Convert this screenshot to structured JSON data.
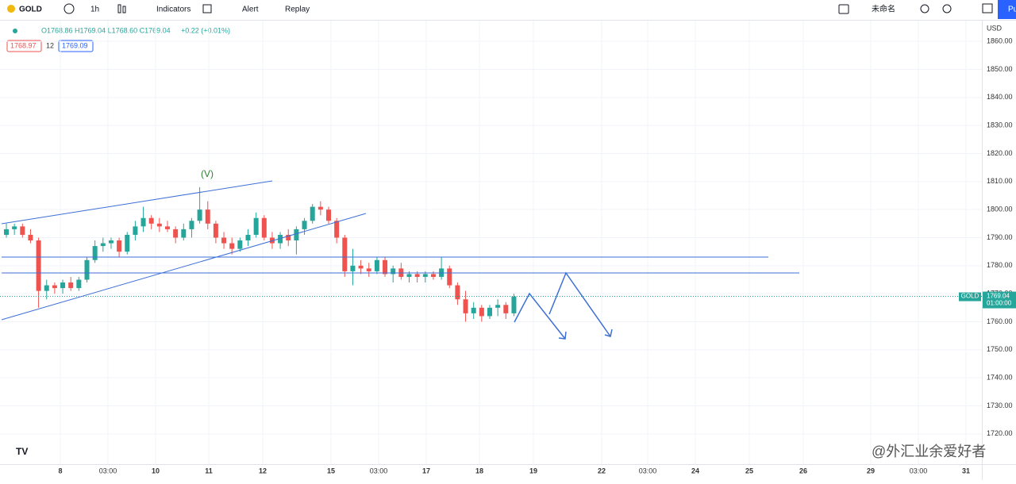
{
  "toolbar": {
    "symbol": "GOLD",
    "interval": "1h",
    "indicators": "Indicators",
    "alert": "Alert",
    "replay": "Replay",
    "layout_name": "未命名",
    "publish": "Pu"
  },
  "legend": {
    "ohlc": "O1768.86 H1769.04 L1768.60 C1769.04",
    "change": "+0.22 (+0.01%)",
    "bid": "1768.97",
    "spread": "12",
    "ask": "1769.09"
  },
  "chart": {
    "type": "candlestick",
    "currency": "USD",
    "wave_label": "(V)",
    "watermark": "@外汇业余爱好者",
    "last_price": {
      "value": 1769.04,
      "label": "1769.04"
    },
    "price_tag": "GOLD",
    "countdown": "01:00:00",
    "ylim": [
      1709.2,
      1867.4
    ],
    "yticks": [
      {
        "value": 1860,
        "label": "1860.00"
      },
      {
        "value": 1850,
        "label": "1850.00"
      },
      {
        "value": 1840,
        "label": "1840.00"
      },
      {
        "value": 1830,
        "label": "1830.00"
      },
      {
        "value": 1820,
        "label": "1820.00"
      },
      {
        "value": 1810,
        "label": "1810.00"
      },
      {
        "value": 1800,
        "label": "1800.00"
      },
      {
        "value": 1790,
        "label": "1790.00"
      },
      {
        "value": 1780,
        "label": "1780.00"
      },
      {
        "value": 1770,
        "label": "1770.00"
      },
      {
        "value": 1760,
        "label": "1760.00"
      },
      {
        "value": 1750,
        "label": "1750.00"
      },
      {
        "value": 1740,
        "label": "1740.00"
      },
      {
        "value": 1730,
        "label": "1730.00"
      },
      {
        "value": 1720,
        "label": "1720.00"
      }
    ],
    "xlabels": [
      "8",
      "03:00",
      "10",
      "11",
      "12",
      "15",
      "03:00",
      "17",
      "18",
      "19",
      "22",
      "03:00",
      "24",
      "25",
      "26",
      "29",
      "03:00",
      "31"
    ],
    "candles": [
      [
        1791,
        1795,
        1790,
        1793
      ],
      [
        1793,
        1795,
        1791,
        1794
      ],
      [
        1794,
        1795,
        1790,
        1791
      ],
      [
        1791,
        1793,
        1788,
        1789
      ],
      [
        1789,
        1790,
        1765,
        1771
      ],
      [
        1771,
        1775,
        1768,
        1773
      ],
      [
        1773,
        1774,
        1770,
        1772
      ],
      [
        1772,
        1775,
        1770,
        1774
      ],
      [
        1774,
        1776,
        1771,
        1772
      ],
      [
        1772,
        1776,
        1771,
        1775
      ],
      [
        1775,
        1783,
        1774,
        1782
      ],
      [
        1782,
        1789,
        1781,
        1787
      ],
      [
        1787,
        1790,
        1785,
        1788
      ],
      [
        1788,
        1790,
        1786,
        1789
      ],
      [
        1789,
        1790,
        1783,
        1785
      ],
      [
        1785,
        1792,
        1784,
        1791
      ],
      [
        1791,
        1796,
        1789,
        1794
      ],
      [
        1794,
        1801,
        1792,
        1797
      ],
      [
        1797,
        1798,
        1793,
        1795
      ],
      [
        1795,
        1797,
        1792,
        1794
      ],
      [
        1794,
        1796,
        1792,
        1793
      ],
      [
        1793,
        1794,
        1788,
        1790
      ],
      [
        1790,
        1795,
        1789,
        1793
      ],
      [
        1793,
        1797,
        1790,
        1796
      ],
      [
        1796,
        1808,
        1795,
        1800
      ],
      [
        1800,
        1803,
        1793,
        1795
      ],
      [
        1795,
        1796,
        1788,
        1790
      ],
      [
        1790,
        1792,
        1786,
        1788
      ],
      [
        1788,
        1790,
        1784,
        1786
      ],
      [
        1786,
        1790,
        1785,
        1789
      ],
      [
        1789,
        1793,
        1787,
        1791
      ],
      [
        1791,
        1799,
        1790,
        1797
      ],
      [
        1797,
        1798,
        1789,
        1790
      ],
      [
        1790,
        1792,
        1786,
        1788
      ],
      [
        1788,
        1792,
        1786,
        1791
      ],
      [
        1791,
        1793,
        1787,
        1789
      ],
      [
        1789,
        1794,
        1784,
        1793
      ],
      [
        1793,
        1797,
        1791,
        1796
      ],
      [
        1796,
        1802,
        1795,
        1801
      ],
      [
        1801,
        1803,
        1798,
        1800
      ],
      [
        1800,
        1801,
        1795,
        1796
      ],
      [
        1796,
        1797,
        1788,
        1790
      ],
      [
        1790,
        1791,
        1776,
        1778
      ],
      [
        1778,
        1786,
        1773,
        1780
      ],
      [
        1780,
        1782,
        1777,
        1779
      ],
      [
        1779,
        1781,
        1776,
        1778
      ],
      [
        1778,
        1783,
        1777,
        1782
      ],
      [
        1782,
        1783,
        1776,
        1777
      ],
      [
        1777,
        1780,
        1774,
        1779
      ],
      [
        1779,
        1781,
        1775,
        1776
      ],
      [
        1776,
        1778,
        1774,
        1777
      ],
      [
        1777,
        1778,
        1774,
        1776
      ],
      [
        1776,
        1778,
        1774,
        1777
      ],
      [
        1777,
        1778,
        1775,
        1776
      ],
      [
        1776,
        1783,
        1775,
        1779
      ],
      [
        1779,
        1780,
        1772,
        1773
      ],
      [
        1773,
        1774,
        1766,
        1768
      ],
      [
        1768,
        1771,
        1760,
        1763
      ],
      [
        1763,
        1767,
        1761,
        1765
      ],
      [
        1765,
        1766,
        1760,
        1762
      ],
      [
        1762,
        1766,
        1761,
        1765
      ],
      [
        1765,
        1768,
        1762,
        1766
      ],
      [
        1766,
        1767,
        1761,
        1763
      ],
      [
        1763,
        1770,
        1762,
        1769
      ]
    ]
  }
}
